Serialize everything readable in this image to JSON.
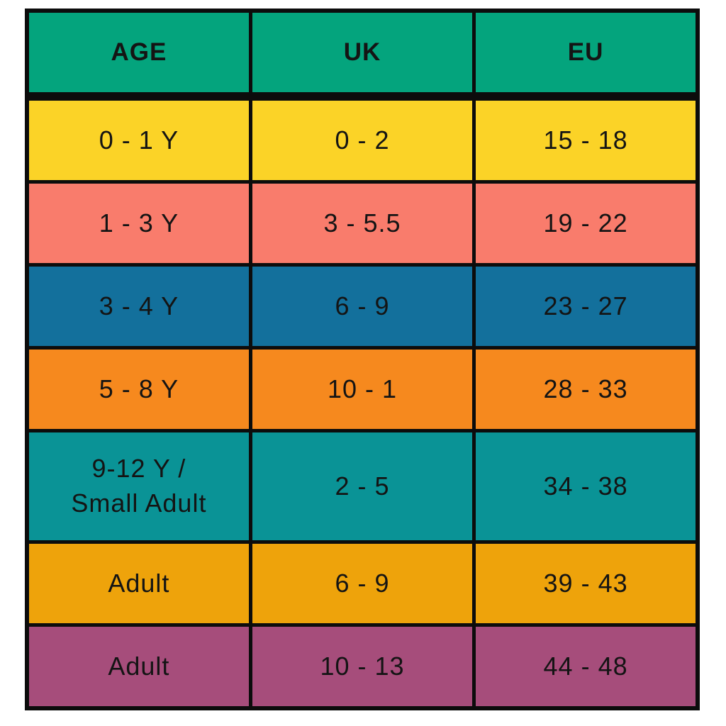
{
  "chart_data": {
    "type": "table",
    "columns": [
      "AGE",
      "UK",
      "EU"
    ],
    "rows": [
      [
        "0 - 1 Y",
        "0 - 2",
        "15 - 18"
      ],
      [
        "1 - 3 Y",
        "3 - 5.5",
        "19 - 22"
      ],
      [
        "3 - 4 Y",
        "6 - 9",
        "23 - 27"
      ],
      [
        "5 - 8 Y",
        "10 - 1",
        "28 - 33"
      ],
      [
        "9-12 Y /\nSmall Adult",
        "2 - 5",
        "34 - 38"
      ],
      [
        "Adult",
        "6 - 9",
        "39 - 43"
      ],
      [
        "Adult",
        "10 - 13",
        "44 - 48"
      ]
    ],
    "header_color": "#04A47D",
    "row_colors": [
      "#FBD327",
      "#F97C6C",
      "#13709C",
      "#F6891E",
      "#0A9396",
      "#EEA30B",
      "#A64D7B"
    ],
    "border_color": "#0c0c0c",
    "text_color": "#141414",
    "legend_position": "none",
    "grid": "solid-black-borders"
  }
}
